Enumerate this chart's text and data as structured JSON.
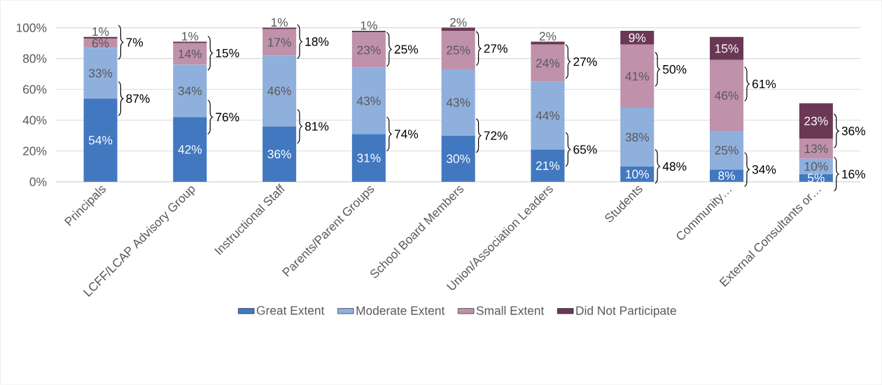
{
  "chart_data": {
    "type": "bar",
    "stacked": true,
    "categories": [
      "Principals",
      "LCFF/LCAP Advisory Group",
      "Instructional Staff",
      "Parents/Parent Groups",
      "School Board Members",
      "Union/Association Leaders",
      "Students",
      "Community…",
      "External Consultants or…"
    ],
    "series": [
      {
        "name": "Great Extent",
        "color": "#4178c0",
        "values": [
          54,
          42,
          36,
          31,
          30,
          21,
          10,
          8,
          5
        ],
        "value_labels": [
          "54%",
          "42%",
          "36%",
          "31%",
          "30%",
          "21%",
          "10%",
          "8%",
          "5%"
        ]
      },
      {
        "name": "Moderate Extent",
        "color": "#8fafdc",
        "values": [
          33,
          34,
          46,
          43,
          43,
          44,
          38,
          25,
          10
        ],
        "value_labels": [
          "33%",
          "34%",
          "46%",
          "43%",
          "43%",
          "44%",
          "38%",
          "25%",
          "10%"
        ]
      },
      {
        "name": "Small Extent",
        "color": "#bf91ab",
        "values": [
          6,
          14,
          17,
          23,
          25,
          24,
          41,
          46,
          13
        ],
        "value_labels": [
          "6%",
          "14%",
          "17%",
          "23%",
          "25%",
          "24%",
          "41%",
          "46%",
          "13%"
        ]
      },
      {
        "name": "Did Not Participate",
        "color": "#6a3855",
        "values": [
          1,
          1,
          1,
          1,
          2,
          2,
          9,
          15,
          23
        ],
        "value_labels": [
          "1%",
          "1%",
          "1%",
          "1%",
          "2%",
          "2%",
          "9%",
          "15%",
          "23%"
        ]
      }
    ],
    "ylim": [
      0,
      100
    ],
    "yticks": [
      {
        "value": 0,
        "label": "0%"
      },
      {
        "value": 20,
        "label": "20%"
      },
      {
        "value": 40,
        "label": "40%"
      },
      {
        "value": 60,
        "label": "60%"
      },
      {
        "value": 80,
        "label": "80%"
      },
      {
        "value": 100,
        "label": "100%"
      }
    ],
    "grid": "y",
    "legend": "bottom",
    "annotations": [
      "87%",
      "7%",
      "76%",
      "15%",
      "81%",
      "18%",
      "74%",
      "25%",
      "72%",
      "27%",
      "65%",
      "27%",
      "48%",
      "50%",
      "34%",
      "61%",
      "16%",
      "36%"
    ]
  }
}
